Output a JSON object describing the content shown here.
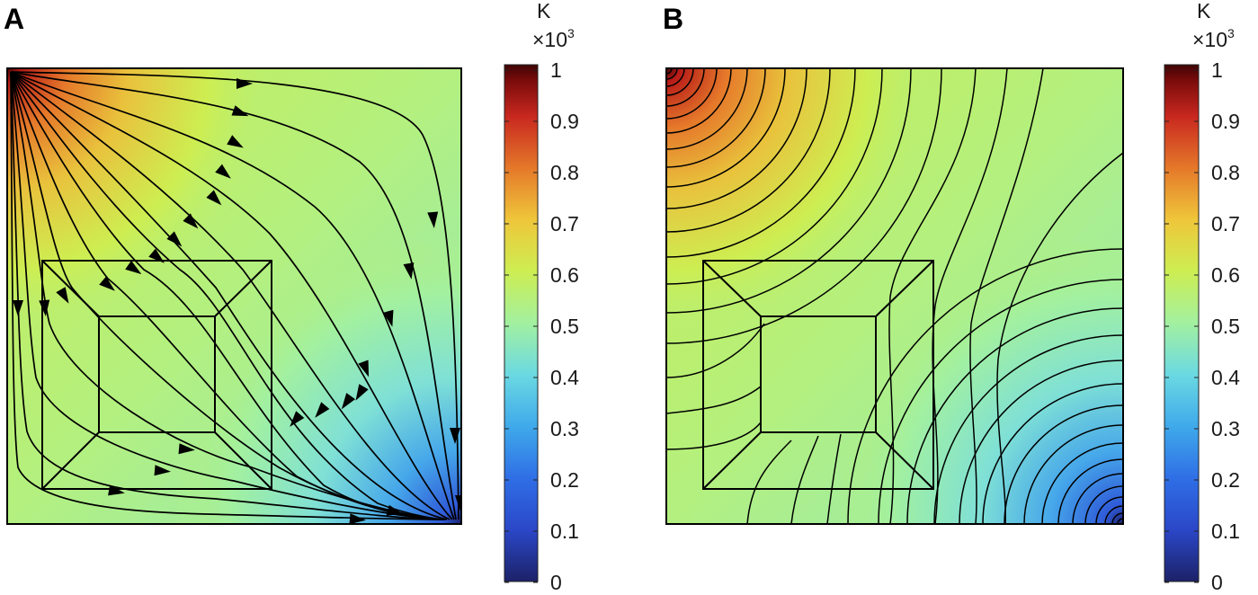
{
  "figure": {
    "panels": [
      {
        "id": "A",
        "label": "A",
        "description_kind": "streamlines"
      },
      {
        "id": "B",
        "label": "B",
        "description_kind": "isotherms"
      }
    ],
    "colorbar": {
      "unit": "K",
      "multiplier_base": "×10",
      "multiplier_exp": "3",
      "ticks": [
        "1",
        "0.9",
        "0.8",
        "0.7",
        "0.6",
        "0.5",
        "0.4",
        "0.3",
        "0.2",
        "0.1",
        "0"
      ],
      "tick_values": [
        1,
        0.9,
        0.8,
        0.7,
        0.6,
        0.5,
        0.4,
        0.3,
        0.2,
        0.1,
        0
      ],
      "colormap": "rainbow",
      "colors": [
        "#20246e",
        "#2b54d6",
        "#3da7e8",
        "#7fe0d6",
        "#a7f28a",
        "#d6ef45",
        "#f0c93a",
        "#e5782a",
        "#c8281f",
        "#8a0d0d",
        "#4a0606"
      ]
    }
  }
}
